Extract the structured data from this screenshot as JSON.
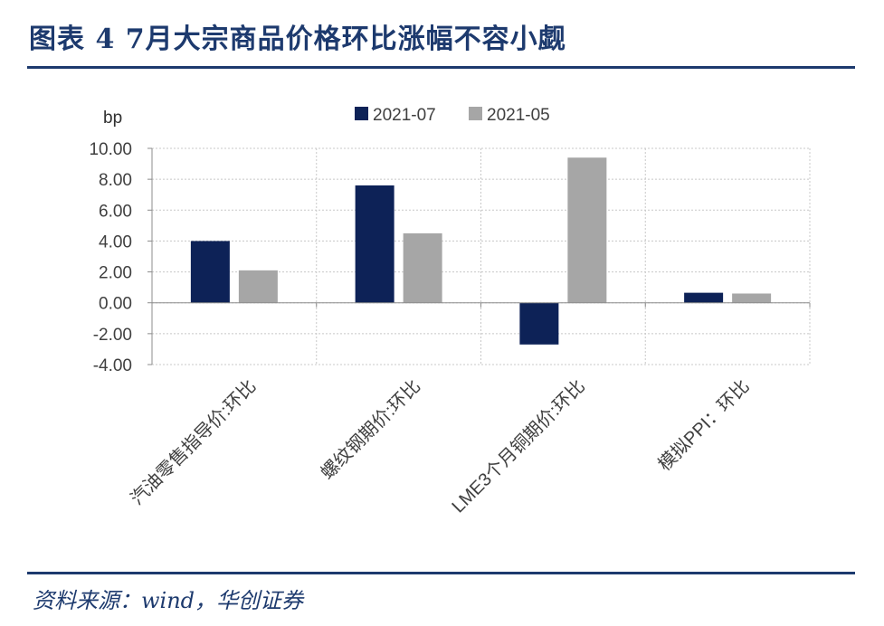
{
  "header": {
    "title": "图表 4   7月大宗商品价格环比涨幅不容小觑"
  },
  "footer": {
    "source": "资料来源：wind，华创证券"
  },
  "colors": {
    "brand": "#1d3a6e",
    "series_2021_07": "#0d2257",
    "series_2021_05": "#a6a6a6"
  },
  "chart_data": {
    "type": "bar",
    "title": "",
    "ylabel": "bp",
    "xlabel": "",
    "categories": [
      "汽油零售指导价:环比",
      "螺纹钢期价:环比",
      "LME3个月铜期价:环比",
      "模拟PPI：环比"
    ],
    "series": [
      {
        "name": "2021-07",
        "values": [
          4.0,
          7.6,
          -2.7,
          0.65
        ]
      },
      {
        "name": "2021-05",
        "values": [
          2.1,
          4.5,
          9.4,
          0.6
        ]
      }
    ],
    "ylim": [
      -4,
      10
    ],
    "yticks": [
      "-4.00",
      "-2.00",
      "0.00",
      "2.00",
      "4.00",
      "6.00",
      "8.00",
      "10.00"
    ],
    "grid": true,
    "legend_position": "top"
  }
}
